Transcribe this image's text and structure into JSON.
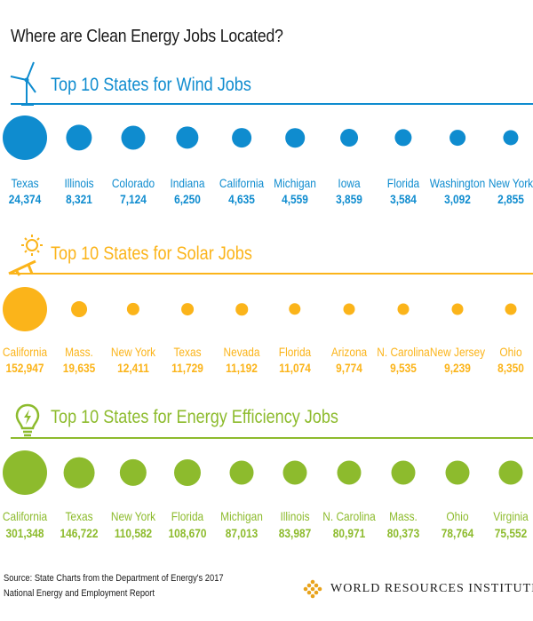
{
  "title": "Where are Clean Energy Jobs Located?",
  "colors": {
    "wind": "#0f8ccf",
    "solar": "#fbb41a",
    "efficiency": "#8dbb2d"
  },
  "icons": {
    "wind": "wind-turbine-icon",
    "solar": "solar-panel-icon",
    "efficiency": "lightbulb-icon",
    "logo": "wri-logo-icon"
  },
  "chart_data": [
    {
      "type": "scatter",
      "title": "Top 10 States for Wind Jobs",
      "categories": [
        "Texas",
        "Illinois",
        "Colorado",
        "Indiana",
        "California",
        "Michigan",
        "Iowa",
        "Florida",
        "Washington",
        "New York"
      ],
      "values": [
        24374,
        8321,
        7124,
        6250,
        4635,
        4559,
        3859,
        3584,
        3092,
        2855
      ],
      "labels": [
        "24,374",
        "8,321",
        "7,124",
        "6,250",
        "4,635",
        "4,559",
        "3,859",
        "3,584",
        "3,092",
        "2,855"
      ]
    },
    {
      "type": "scatter",
      "title": "Top 10 States for Solar Jobs",
      "categories": [
        "California",
        "Mass.",
        "New York",
        "Texas",
        "Nevada",
        "Florida",
        "Arizona",
        "N. Carolina",
        "New Jersey",
        "Ohio"
      ],
      "values": [
        152947,
        19635,
        12411,
        11729,
        11192,
        11074,
        9774,
        9535,
        9239,
        8350
      ],
      "labels": [
        "152,947",
        "19,635",
        "12,411",
        "11,729",
        "11,192",
        "11,074",
        "9,774",
        "9,535",
        "9,239",
        "8,350"
      ]
    },
    {
      "type": "scatter",
      "title": "Top 10 States for Energy Efficiency Jobs",
      "categories": [
        "California",
        "Texas",
        "New York",
        "Florida",
        "Michigan",
        "Illinois",
        "N. Carolina",
        "Mass.",
        "Ohio",
        "Virginia"
      ],
      "values": [
        301348,
        146722,
        110582,
        108670,
        87013,
        83987,
        80971,
        80373,
        78764,
        75552
      ],
      "labels": [
        "301,348",
        "146,722",
        "110,582",
        "108,670",
        "87,013",
        "83,987",
        "80,971",
        "80,373",
        "78,764",
        "75,552"
      ]
    }
  ],
  "source": {
    "line1": "Source: State Charts from the Department of Energy's 2017",
    "line2": "National Energy and Employment Report"
  },
  "organization": "WORLD RESOURCES INSTITUTE"
}
